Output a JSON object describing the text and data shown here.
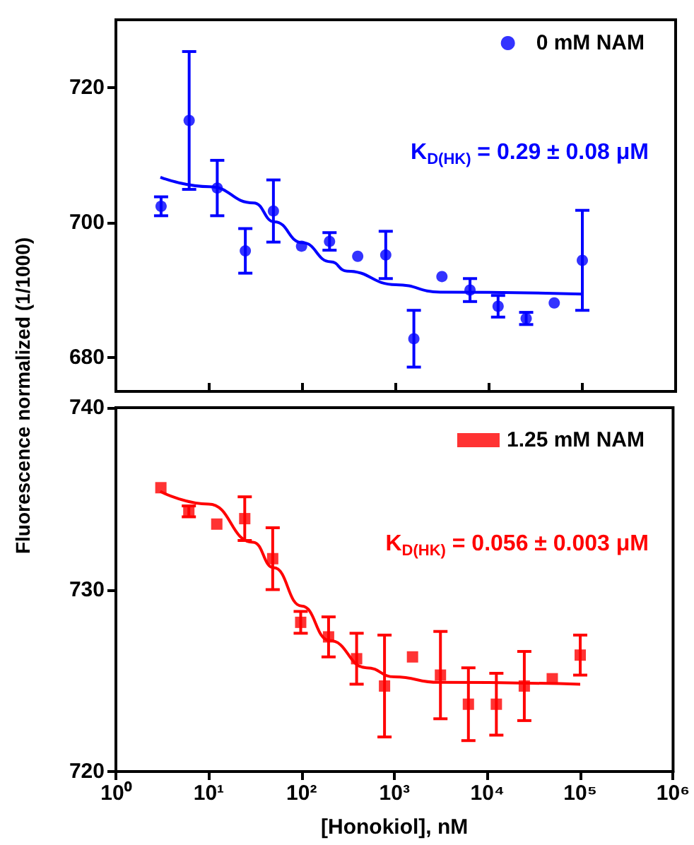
{
  "chart_data": [
    {
      "type": "scatter",
      "ylabel": "Fluorescence normalized (1/1000)",
      "log": "x",
      "xlim": [
        1,
        1000000
      ],
      "xticks": [
        {
          "value": 1,
          "label": null
        },
        {
          "value": 10,
          "label": null
        },
        {
          "value": 100,
          "label": null
        },
        {
          "value": 1000,
          "label": null
        },
        {
          "value": 10000,
          "label": null
        },
        {
          "value": 100000,
          "label": null
        },
        {
          "value": 1000000,
          "label": null
        }
      ],
      "ylim": [
        675,
        730
      ],
      "yticks": [
        680,
        700,
        720
      ],
      "tick_labels": "y",
      "legend": "top right",
      "marker": "circle",
      "annotations": [
        "K$_{D(HK)}$ = 0.29 ± 0.08 μM"
      ],
      "x": [
        3.05,
        6.1,
        12.2,
        24.4,
        48.8,
        97.7,
        195,
        391,
        781,
        1563,
        3125,
        6250,
        12500,
        25000,
        50000,
        100000
      ],
      "series": [
        {
          "name": "0 mM NAM",
          "color": "#0000ff",
          "values": [
            702.4,
            715.1,
            705.1,
            695.8,
            701.7,
            696.5,
            697.2,
            695.0,
            695.2,
            682.8,
            692.0,
            690.0,
            687.6,
            685.8,
            688.1,
            694.4
          ],
          "errors": [
            1.4,
            10.2,
            4.1,
            3.3,
            4.6,
            null,
            1.3,
            null,
            3.5,
            4.2,
            null,
            1.7,
            1.6,
            0.9,
            null,
            7.4
          ]
        },
        {
          "type": "line",
          "color": "#0000ff",
          "marker": "none",
          "x": [
            3,
            10,
            30,
            50,
            100,
            200,
            300,
            1000,
            3000,
            100000
          ],
          "values": [
            706.7,
            705.3,
            702.9,
            700.1,
            697.0,
            694.2,
            692.8,
            690.8,
            689.7,
            689.4
          ]
        }
      ]
    },
    {
      "type": "scatter",
      "xlabel": "[Honokiol], nM",
      "log": "x",
      "xlim": [
        1,
        1000000
      ],
      "xticks": [
        {
          "value": 1,
          "label": "10⁰"
        },
        {
          "value": 10,
          "label": "10¹"
        },
        {
          "value": 100,
          "label": "10²"
        },
        {
          "value": 1000,
          "label": "10³"
        },
        {
          "value": 10000,
          "label": "10⁴"
        },
        {
          "value": 100000,
          "label": "10⁵"
        },
        {
          "value": 1000000,
          "label": "10⁶"
        }
      ],
      "ylim": [
        720,
        740
      ],
      "yticks": [
        720,
        730,
        740
      ],
      "legend": "top right",
      "marker": "square",
      "annotations": [
        "K$_{D(HK)}$ = 0.056 ± 0.003 μM"
      ],
      "x": [
        3.05,
        6.1,
        12.2,
        24.4,
        48.8,
        97.7,
        195,
        391,
        781,
        1563,
        3125,
        6250,
        12500,
        25000,
        50000,
        100000
      ],
      "series": [
        {
          "name": "1.25 mM NAM",
          "color": "#ff0000",
          "values": [
            735.6,
            734.3,
            733.6,
            733.9,
            731.7,
            728.2,
            727.4,
            726.2,
            724.7,
            726.3,
            725.3,
            723.7,
            723.7,
            724.7,
            725.1,
            726.4
          ],
          "errors": [
            null,
            0.3,
            null,
            1.2,
            1.7,
            0.6,
            1.1,
            1.4,
            2.8,
            null,
            2.4,
            2.0,
            1.7,
            1.9,
            null,
            1.1
          ]
        },
        {
          "type": "line",
          "color": "#ff0000",
          "marker": "none",
          "x": [
            3,
            10,
            30,
            50,
            100,
            200,
            500,
            1000,
            3000,
            100000
          ],
          "values": [
            735.4,
            734.7,
            732.6,
            731.2,
            729.1,
            727.2,
            725.7,
            725.2,
            724.9,
            724.8
          ]
        }
      ]
    }
  ]
}
